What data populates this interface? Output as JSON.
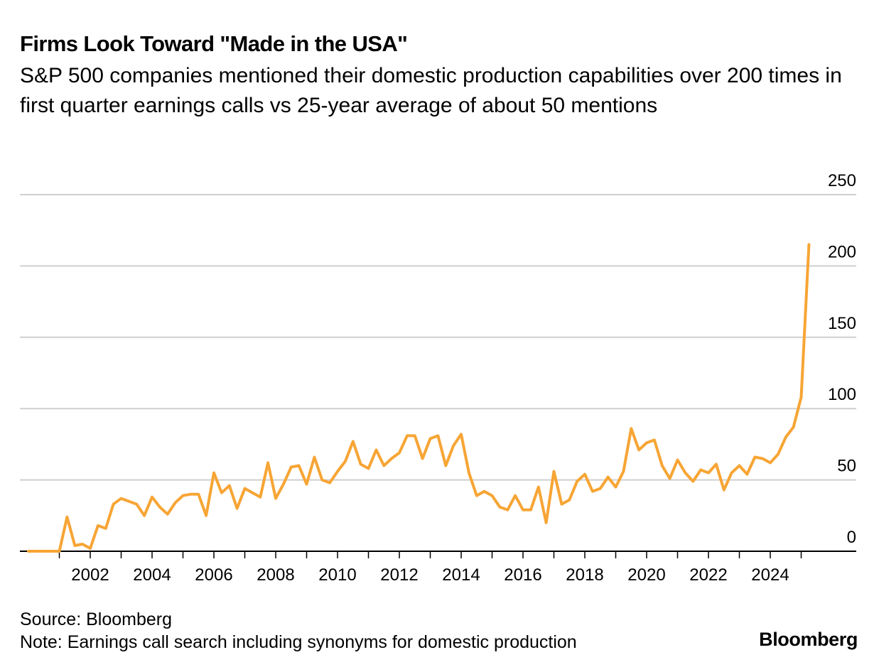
{
  "title": "Firms Look Toward \"Made in the USA\"",
  "subtitle": "S&P 500 companies mentioned their domestic production capabilities over 200 times in first quarter earnings calls vs 25-year average of about 50 mentions",
  "source": "Source: Bloomberg",
  "note": "Note: Earnings call search including synonyms for domestic production",
  "brand": "Bloomberg",
  "colors": {
    "line": "#f7a535",
    "grid": "#cfcfcf",
    "axis": "#000000"
  },
  "chart_data": {
    "type": "line",
    "title": "Firms Look Toward \"Made in the USA\"",
    "xlabel": "",
    "ylabel": "",
    "ylim": [
      0,
      250
    ],
    "y_ticks": [
      0,
      50,
      100,
      150,
      200,
      250
    ],
    "y_tick_labels": [
      "0",
      "50",
      "100",
      "150",
      "200",
      "250"
    ],
    "x_range": [
      "2000-01",
      "2025-12"
    ],
    "x_tick_labels": [
      "2002",
      "2004",
      "2006",
      "2008",
      "2010",
      "2012",
      "2014",
      "2016",
      "2018",
      "2020",
      "2022",
      "2024"
    ],
    "grid": true,
    "y_axis_position": "right",
    "series": [
      {
        "x": [
          "2000-Q1",
          "2000-Q2",
          "2000-Q3",
          "2000-Q4",
          "2001-Q1",
          "2001-Q2",
          "2001-Q3",
          "2001-Q4",
          "2002-Q1",
          "2002-Q2",
          "2002-Q3",
          "2002-Q4",
          "2003-Q1",
          "2003-Q2",
          "2003-Q3",
          "2003-Q4",
          "2004-Q1",
          "2004-Q2",
          "2004-Q3",
          "2004-Q4",
          "2005-Q1",
          "2005-Q2",
          "2005-Q3",
          "2005-Q4",
          "2006-Q1",
          "2006-Q2",
          "2006-Q3",
          "2006-Q4",
          "2007-Q1",
          "2007-Q2",
          "2007-Q3",
          "2007-Q4",
          "2008-Q1",
          "2008-Q2",
          "2008-Q3",
          "2008-Q4",
          "2009-Q1",
          "2009-Q2",
          "2009-Q3",
          "2009-Q4",
          "2010-Q1",
          "2010-Q2",
          "2010-Q3",
          "2010-Q4",
          "2011-Q1",
          "2011-Q2",
          "2011-Q3",
          "2011-Q4",
          "2012-Q1",
          "2012-Q2",
          "2012-Q3",
          "2012-Q4",
          "2013-Q1",
          "2013-Q2",
          "2013-Q3",
          "2013-Q4",
          "2014-Q1",
          "2014-Q2",
          "2014-Q3",
          "2014-Q4",
          "2015-Q1",
          "2015-Q2",
          "2015-Q3",
          "2015-Q4",
          "2016-Q1",
          "2016-Q2",
          "2016-Q3",
          "2016-Q4",
          "2017-Q1",
          "2017-Q2",
          "2017-Q3",
          "2017-Q4",
          "2018-Q1",
          "2018-Q2",
          "2018-Q3",
          "2018-Q4",
          "2019-Q1",
          "2019-Q2",
          "2019-Q3",
          "2019-Q4",
          "2020-Q1",
          "2020-Q2",
          "2020-Q3",
          "2020-Q4",
          "2021-Q1",
          "2021-Q2",
          "2021-Q3",
          "2021-Q4",
          "2022-Q1",
          "2022-Q2",
          "2022-Q3",
          "2022-Q4",
          "2023-Q1",
          "2023-Q2",
          "2023-Q3",
          "2023-Q4",
          "2024-Q1",
          "2024-Q2",
          "2024-Q3",
          "2024-Q4",
          "2025-Q1",
          "2025-Q2"
        ],
        "values": [
          0,
          0,
          0,
          0,
          0,
          24,
          4,
          5,
          2,
          18,
          16,
          33,
          37,
          35,
          33,
          25,
          38,
          31,
          26,
          34,
          39,
          40,
          40,
          25,
          55,
          41,
          46,
          30,
          44,
          41,
          38,
          62,
          37,
          47,
          59,
          60,
          47,
          66,
          50,
          48,
          56,
          63,
          77,
          61,
          58,
          71,
          60,
          65,
          69,
          81,
          81,
          65,
          79,
          81,
          60,
          74,
          82,
          55,
          39,
          42,
          39,
          31,
          29,
          39,
          29,
          29,
          45,
          20,
          56,
          33,
          36,
          49,
          54,
          42,
          44,
          52,
          45,
          56,
          86,
          71,
          76,
          78,
          60,
          51,
          64,
          55,
          49,
          57,
          55,
          61,
          43,
          55,
          60,
          54,
          66,
          65,
          62,
          68,
          80,
          87,
          108,
          215
        ]
      }
    ]
  }
}
